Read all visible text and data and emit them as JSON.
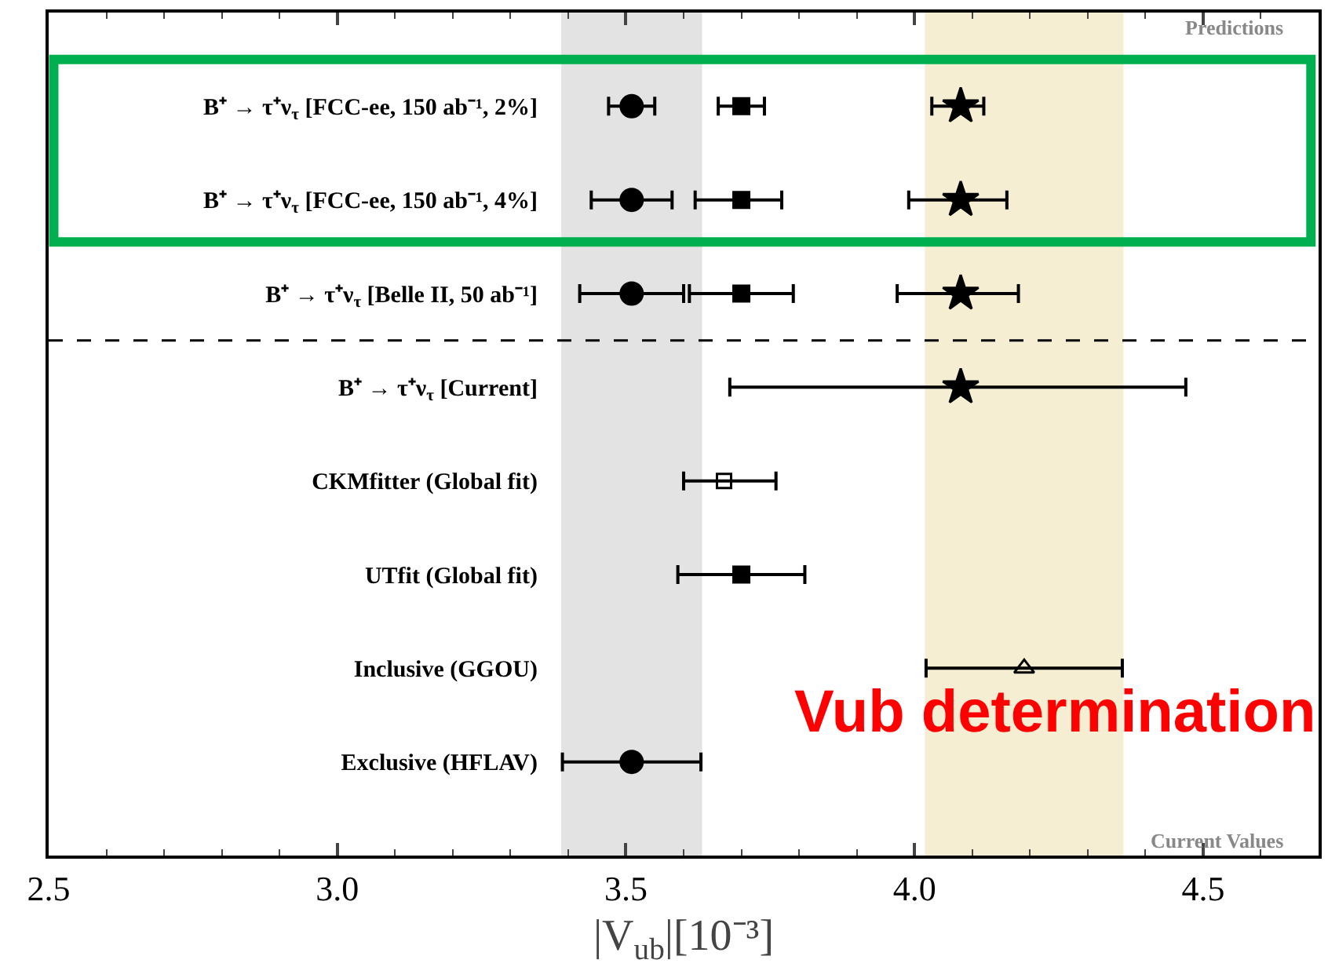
{
  "chart_data": {
    "type": "scatter",
    "orientation": "horizontal",
    "xlabel": "|V$_{ub}$|[10⁻³]",
    "categories": [
      "B⁺ → τ⁺ν$_{τ}$ [FCC-ee, 150 ab⁻¹, 2%]",
      "B⁺ → τ⁺ν$_{τ}$ [FCC-ee, 150 ab⁻¹, 4%]",
      "B⁺ → τ⁺ν$_{τ}$ [Belle II, 50 ab⁻¹]",
      "B⁺ → τ⁺ν$_{τ}$ [Current]",
      "CKMfitter (Global fit)",
      "UTfit (Global fit)",
      "Inclusive (GGOU)",
      "Exclusive (HFLAV)"
    ],
    "series": [
      {
        "color": "#000000",
        "marker": "circle",
        "values": [
          3.51,
          3.51,
          3.51,
          null,
          null,
          null,
          null,
          3.51
        ],
        "errors": [
          [
            3.47,
            3.55
          ],
          [
            3.44,
            3.58
          ],
          [
            3.42,
            3.6
          ],
          null,
          null,
          null,
          null,
          [
            3.39,
            3.63
          ]
        ]
      },
      {
        "color": "#000000",
        "marker": "square",
        "values": [
          3.7,
          3.7,
          3.7,
          null,
          null,
          3.7,
          null,
          null
        ],
        "errors": [
          [
            3.66,
            3.74
          ],
          [
            3.62,
            3.77
          ],
          [
            3.61,
            3.79
          ],
          null,
          null,
          [
            3.59,
            3.81
          ],
          null,
          null
        ]
      },
      {
        "color": "#000000",
        "marker": "star",
        "values": [
          4.08,
          4.08,
          4.08,
          4.08,
          null,
          null,
          null,
          null
        ],
        "errors": [
          [
            4.03,
            4.12
          ],
          [
            3.99,
            4.16
          ],
          [
            3.97,
            4.18
          ],
          [
            3.68,
            4.47
          ],
          null,
          null,
          null,
          null
        ]
      },
      {
        "color": "#000000",
        "marker": "square-open",
        "values": [
          null,
          null,
          null,
          null,
          3.67,
          null,
          null,
          null
        ],
        "errors": [
          null,
          null,
          null,
          null,
          [
            3.6,
            3.76
          ],
          null,
          null,
          null
        ]
      },
      {
        "color": "#000000",
        "marker": "triangle-open",
        "values": [
          null,
          null,
          null,
          null,
          null,
          null,
          4.19,
          null
        ],
        "errors": [
          null,
          null,
          null,
          null,
          null,
          null,
          [
            4.02,
            4.36
          ],
          null
        ]
      }
    ],
    "xlim": [
      2.5,
      4.7
    ],
    "xticks": [
      2.5,
      {
        "value": 3,
        "label": "3.0"
      },
      3.5,
      {
        "value": 4,
        "label": "4.0"
      },
      4.5
    ],
    "bands": [
      {
        "axis": "x",
        "from": 3.39,
        "to": 3.63,
        "color": "#e3e3e3"
      },
      {
        "axis": "x",
        "from": 4.02,
        "to": 4.36,
        "color": "#f6eed3"
      }
    ],
    "annotations": [
      "Predictions",
      "Current Values",
      "Vub determination"
    ]
  }
}
